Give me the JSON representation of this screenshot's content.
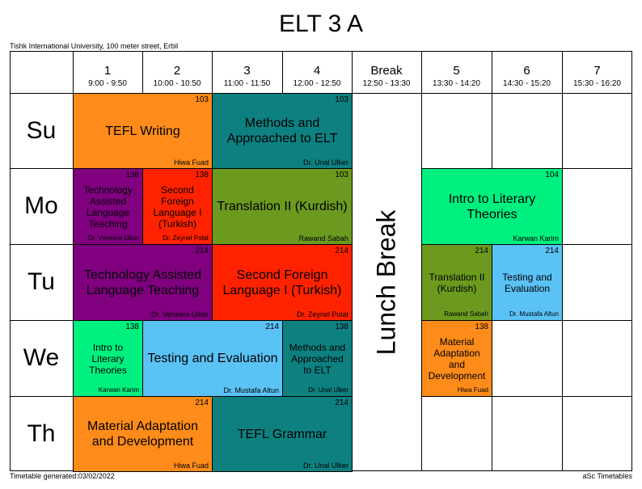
{
  "header": {
    "title": "ELT 3 A",
    "institution": "Tishk International University, 100 meter street, Erbil"
  },
  "periods": [
    {
      "num": "1",
      "time": "9:00 - 9:50"
    },
    {
      "num": "2",
      "time": "10:00 - 10:50"
    },
    {
      "num": "3",
      "time": "11:00 - 11:50"
    },
    {
      "num": "4",
      "time": "12:00 - 12:50"
    },
    {
      "num": "Break",
      "time": "12:50 - 13:30"
    },
    {
      "num": "5",
      "time": "13:30 - 14:20"
    },
    {
      "num": "6",
      "time": "14:30 - 15:20"
    },
    {
      "num": "7",
      "time": "15:30 - 16:20"
    }
  ],
  "days": [
    "Su",
    "Mo",
    "Tu",
    "We",
    "Th"
  ],
  "lunch_label": "Lunch Break",
  "lessons": [
    {
      "subject": "TEFL Writing",
      "room": "103",
      "teacher": "Hiwa Fuad",
      "color": "#FF8C1A"
    },
    {
      "subject": "Methods and Approached to ELT",
      "room": "103",
      "teacher": "Dr. Unal Ulker",
      "color": "#0E8080"
    },
    {
      "subject": "Technology Assisted Language Teaching",
      "room": "138",
      "teacher": "Dr. Veneera Ulker",
      "color": "#800080"
    },
    {
      "subject": "Second Foreign Language I (Turkish)",
      "room": "138",
      "teacher": "Dr. Zeynel Polat",
      "color": "#FF2200"
    },
    {
      "subject": "Translation II (Kurdish)",
      "room": "103",
      "teacher": "Rawand Sabah",
      "color": "#6B9A1F"
    },
    {
      "subject": "Intro to Literary Theories",
      "room": "104",
      "teacher": "Karwan Karim",
      "color": "#00F080"
    },
    {
      "subject": "Technology Assisted Language Teaching",
      "room": "214",
      "teacher": "Dr. Veneera Ulker",
      "color": "#800080"
    },
    {
      "subject": "Second Foreign Language I (Turkish)",
      "room": "214",
      "teacher": "Dr. Zeynel Polat",
      "color": "#FF2200"
    },
    {
      "subject": "Translation II (Kurdish)",
      "room": "214",
      "teacher": "Rawand Sabah",
      "color": "#6B9A1F"
    },
    {
      "subject": "Testing and Evaluation",
      "room": "214",
      "teacher": "Dr. Mustafa Altun",
      "color": "#5BC2F5"
    },
    {
      "subject": "Intro to Literary Theories",
      "room": "138",
      "teacher": "Karwan Karim",
      "color": "#00F080"
    },
    {
      "subject": "Testing and Evaluation",
      "room": "214",
      "teacher": "Dr. Mustafa Altun",
      "color": "#5BC2F5"
    },
    {
      "subject": "Methods and Approached to ELT",
      "room": "138",
      "teacher": "Dr. Unal Ulker",
      "color": "#0E8080"
    },
    {
      "subject": "Material Adaptation and Development",
      "room": "138",
      "teacher": "Hiwa Fuad",
      "color": "#FF8C1A"
    },
    {
      "subject": "Material Adaptation and Development",
      "room": "214",
      "teacher": "Hiwa Fuad",
      "color": "#FF8C1A"
    },
    {
      "subject": "TEFL Grammar",
      "room": "214",
      "teacher": "Dr. Unal Ulker",
      "color": "#0E8080"
    }
  ],
  "footer": {
    "generated": "Timetable generated:03/02/2022",
    "brand": "aSc Timetables"
  }
}
